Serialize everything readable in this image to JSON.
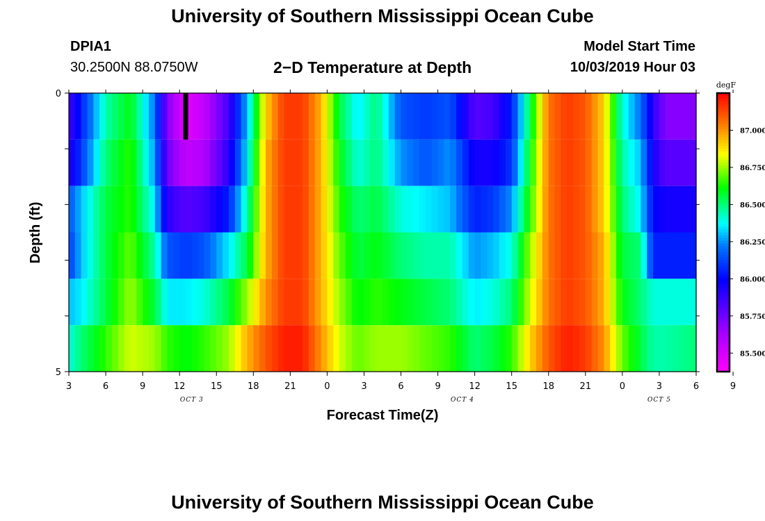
{
  "header": {
    "top_title": "University of Southern Mississippi Ocean Cube",
    "station": "DPIA1",
    "coords": "30.2500N 88.0750W",
    "plot_title": "2−D Temperature at Depth",
    "model_label": "Model Start Time",
    "model_time": "10/03/2019 Hour 03"
  },
  "footer": {
    "bottom_title": "University of Southern Mississippi Ocean Cube"
  },
  "chart_data": {
    "type": "heatmap",
    "title": "2−D Temperature at Depth",
    "xlabel": "Forecast Time(Z)",
    "ylabel": "Depth (ft)",
    "x_start_hour": 3,
    "x_end_hour": 54,
    "x_tick_labels": [
      "3",
      "6",
      "9",
      "12",
      "15",
      "18",
      "21",
      "0",
      "3",
      "6",
      "9",
      "12",
      "15",
      "18",
      "21",
      "0",
      "3",
      "6",
      "9"
    ],
    "date_labels": [
      {
        "label": "OCT 3",
        "hour": 13
      },
      {
        "label": "OCT 4",
        "hour": 35
      },
      {
        "label": "OCT 5",
        "hour": 51
      }
    ],
    "y_tick_labels": [
      "0",
      "5"
    ],
    "ylim": [
      0,
      5
    ],
    "depth_layers": [
      0,
      1,
      2,
      3,
      4,
      5
    ],
    "colorbar": {
      "unit": "degF",
      "min": 85.375,
      "max": 87.25,
      "tick_labels": [
        "87.000",
        "86.750",
        "86.500",
        "86.250",
        "86.000",
        "85.750",
        "85.500"
      ],
      "tick_values": [
        87.0,
        86.75,
        86.5,
        86.25,
        86.0,
        85.75,
        85.5
      ]
    },
    "layer_anchors": [
      {
        "hours": [
          3,
          4,
          6,
          8,
          10,
          11,
          12.5,
          14,
          16,
          17.5,
          19,
          20.5,
          22,
          23.5,
          25,
          26.5,
          28,
          30,
          32,
          34,
          36,
          37.5,
          39,
          40.5,
          42,
          43.5,
          45,
          46.5,
          48,
          49.5,
          50.5,
          51.5,
          54
        ],
        "temps": [
          85.85,
          86.05,
          86.45,
          86.6,
          86.2,
          85.7,
          85.45,
          85.55,
          85.85,
          86.3,
          86.9,
          87.15,
          87.15,
          86.95,
          86.55,
          86.35,
          86.5,
          86.15,
          86.1,
          86.15,
          85.8,
          85.85,
          86.05,
          86.55,
          87.05,
          87.15,
          87.1,
          86.9,
          86.4,
          86.2,
          85.9,
          85.7,
          85.7
        ]
      },
      {
        "hours": [
          3,
          4,
          6,
          8,
          10,
          11,
          12.5,
          14,
          16,
          17.5,
          19,
          20.5,
          22,
          23.5,
          25,
          26.5,
          28,
          30,
          32,
          34,
          36,
          37.5,
          39,
          40.5,
          42,
          43.5,
          45,
          46.5,
          48,
          49.5,
          50.5,
          51.5,
          54
        ],
        "temps": [
          85.9,
          86.1,
          86.5,
          86.65,
          86.25,
          85.75,
          85.55,
          85.6,
          85.9,
          86.35,
          86.95,
          87.15,
          87.15,
          86.95,
          86.6,
          86.4,
          86.5,
          86.25,
          86.15,
          86.25,
          85.95,
          85.95,
          86.1,
          86.6,
          87.05,
          87.15,
          87.1,
          86.9,
          86.45,
          86.3,
          85.95,
          85.8,
          85.8
        ]
      },
      {
        "hours": [
          3,
          4,
          6,
          8,
          10,
          11,
          12.5,
          14,
          16,
          17.5,
          19,
          20.5,
          22,
          23.5,
          25,
          26.5,
          28,
          30,
          32,
          34,
          36,
          37.5,
          39,
          40.5,
          42,
          43.5,
          45,
          46.5,
          48,
          49.5,
          50.5,
          51.5,
          54
        ],
        "temps": [
          86.15,
          86.3,
          86.55,
          86.65,
          86.35,
          85.9,
          85.8,
          85.85,
          86.05,
          86.45,
          86.95,
          87.15,
          87.15,
          86.95,
          86.65,
          86.5,
          86.55,
          86.4,
          86.35,
          86.3,
          86.05,
          86.1,
          86.25,
          86.65,
          87.05,
          87.15,
          87.1,
          86.9,
          86.5,
          86.35,
          86.0,
          85.95,
          85.95
        ]
      },
      {
        "hours": [
          3,
          4,
          6,
          8,
          10,
          11,
          12.5,
          14,
          16,
          17.5,
          19,
          20.5,
          22,
          23.5,
          25,
          26.5,
          28,
          30,
          32,
          34,
          36,
          37.5,
          39,
          40.5,
          42,
          43.5,
          45,
          46.5,
          48,
          49.5,
          50.5,
          51.5,
          54
        ],
        "temps": [
          86.1,
          86.3,
          86.55,
          86.7,
          86.45,
          86.15,
          86.1,
          86.15,
          86.35,
          86.55,
          86.95,
          87.15,
          87.15,
          86.95,
          86.7,
          86.55,
          86.6,
          86.5,
          86.45,
          86.45,
          86.25,
          86.3,
          86.4,
          86.75,
          87.05,
          87.15,
          87.1,
          86.95,
          86.55,
          86.5,
          86.05,
          86.05,
          86.05
        ]
      },
      {
        "hours": [
          3,
          4,
          6,
          8,
          10,
          11,
          12.5,
          14,
          16,
          17.5,
          19,
          20.5,
          22,
          23.5,
          25,
          26.5,
          28,
          30,
          32,
          34,
          36,
          37.5,
          39,
          40.5,
          42,
          43.5,
          45,
          46.5,
          48,
          49.5,
          50.5,
          51.5,
          54
        ],
        "temps": [
          86.3,
          86.35,
          86.55,
          86.75,
          86.55,
          86.35,
          86.35,
          86.4,
          86.55,
          86.75,
          87.0,
          87.15,
          87.15,
          86.95,
          86.75,
          86.6,
          86.65,
          86.6,
          86.55,
          86.5,
          86.35,
          86.4,
          86.5,
          86.8,
          87.05,
          87.15,
          87.1,
          86.95,
          86.6,
          86.5,
          86.4,
          86.4,
          86.4
        ]
      },
      {
        "hours": [
          3,
          4,
          6,
          8,
          10,
          11,
          12.5,
          14,
          16,
          17.5,
          19,
          20.5,
          22,
          23.5,
          25,
          26.5,
          28,
          30,
          32,
          34,
          36,
          37.5,
          39,
          40.5,
          42,
          43.5,
          45,
          46.5,
          48,
          49.5,
          50.5,
          51.5,
          54
        ],
        "temps": [
          86.4,
          86.5,
          86.65,
          86.8,
          86.75,
          86.65,
          86.6,
          86.65,
          86.75,
          86.95,
          87.1,
          87.2,
          87.2,
          87.0,
          86.8,
          86.7,
          86.75,
          86.75,
          86.7,
          86.65,
          86.5,
          86.55,
          86.65,
          86.9,
          87.1,
          87.2,
          87.15,
          87.0,
          86.7,
          86.55,
          86.45,
          86.45,
          86.5
        ]
      }
    ],
    "missing_data": [
      {
        "hour": 12.5,
        "depth_layer": 0
      }
    ]
  }
}
